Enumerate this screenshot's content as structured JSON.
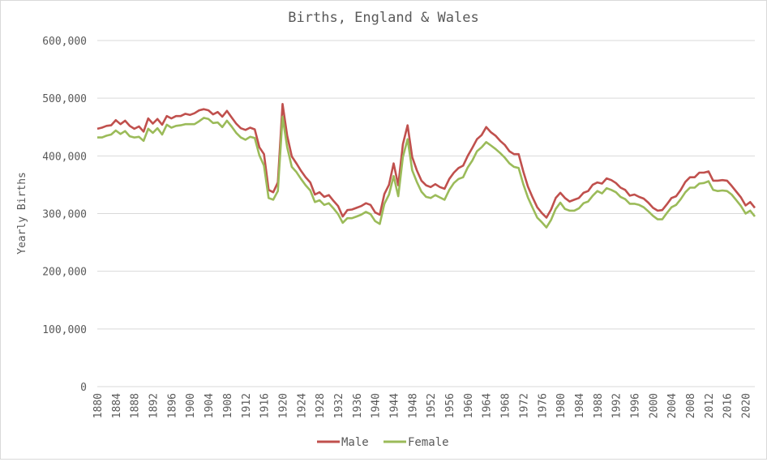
{
  "chart_data": {
    "type": "line",
    "title": "Births, England & Wales",
    "xlabel": "",
    "ylabel": "Yearly Births",
    "ylim": [
      0,
      600000
    ],
    "yticks": [
      0,
      100000,
      200000,
      300000,
      400000,
      500000,
      600000
    ],
    "ytick_labels": [
      "0",
      "100,000",
      "200,000",
      "300,000",
      "400,000",
      "500,000",
      "600,000"
    ],
    "xlim": [
      1880,
      2022
    ],
    "xticks": [
      1880,
      1884,
      1888,
      1892,
      1896,
      1900,
      1904,
      1908,
      1912,
      1916,
      1920,
      1924,
      1928,
      1932,
      1936,
      1940,
      1944,
      1948,
      1952,
      1956,
      1960,
      1964,
      1968,
      1972,
      1976,
      1980,
      1984,
      1988,
      1992,
      1996,
      2000,
      2004,
      2008,
      2012,
      2016,
      2020
    ],
    "grid": "horizontal",
    "legend_position": "bottom",
    "colors": {
      "male": "#C0504D",
      "female": "#9BBB59",
      "grid": "#d9d9d9",
      "text": "#595959"
    },
    "series": [
      {
        "name": "Male",
        "color": "#C0504D",
        "points": [
          [
            1880,
            447000
          ],
          [
            1881,
            449000
          ],
          [
            1882,
            452000
          ],
          [
            1883,
            453000
          ],
          [
            1884,
            462000
          ],
          [
            1885,
            455000
          ],
          [
            1886,
            461000
          ],
          [
            1887,
            452000
          ],
          [
            1888,
            447000
          ],
          [
            1889,
            451000
          ],
          [
            1890,
            442000
          ],
          [
            1891,
            465000
          ],
          [
            1892,
            456000
          ],
          [
            1893,
            464000
          ],
          [
            1894,
            454000
          ],
          [
            1895,
            469000
          ],
          [
            1896,
            465000
          ],
          [
            1897,
            469000
          ],
          [
            1898,
            469000
          ],
          [
            1899,
            473000
          ],
          [
            1900,
            471000
          ],
          [
            1901,
            474000
          ],
          [
            1902,
            479000
          ],
          [
            1903,
            481000
          ],
          [
            1904,
            479000
          ],
          [
            1905,
            472000
          ],
          [
            1906,
            476000
          ],
          [
            1907,
            468000
          ],
          [
            1908,
            478000
          ],
          [
            1909,
            467000
          ],
          [
            1910,
            456000
          ],
          [
            1911,
            448000
          ],
          [
            1912,
            445000
          ],
          [
            1913,
            449000
          ],
          [
            1914,
            446000
          ],
          [
            1915,
            415000
          ],
          [
            1916,
            403000
          ],
          [
            1917,
            341000
          ],
          [
            1918,
            337000
          ],
          [
            1919,
            354000
          ],
          [
            1920,
            490000
          ],
          [
            1921,
            435000
          ],
          [
            1922,
            399000
          ],
          [
            1923,
            387000
          ],
          [
            1924,
            374000
          ],
          [
            1925,
            363000
          ],
          [
            1926,
            354000
          ],
          [
            1927,
            333000
          ],
          [
            1928,
            337000
          ],
          [
            1929,
            329000
          ],
          [
            1930,
            332000
          ],
          [
            1931,
            322000
          ],
          [
            1932,
            313000
          ],
          [
            1933,
            295000
          ],
          [
            1934,
            306000
          ],
          [
            1935,
            307000
          ],
          [
            1936,
            310000
          ],
          [
            1937,
            313000
          ],
          [
            1938,
            318000
          ],
          [
            1939,
            315000
          ],
          [
            1940,
            302000
          ],
          [
            1941,
            298000
          ],
          [
            1942,
            334000
          ],
          [
            1943,
            350000
          ],
          [
            1944,
            387000
          ],
          [
            1945,
            349000
          ],
          [
            1946,
            420000
          ],
          [
            1947,
            453000
          ],
          [
            1948,
            398000
          ],
          [
            1949,
            375000
          ],
          [
            1950,
            357000
          ],
          [
            1951,
            349000
          ],
          [
            1952,
            346000
          ],
          [
            1953,
            351000
          ],
          [
            1954,
            346000
          ],
          [
            1955,
            343000
          ],
          [
            1956,
            360000
          ],
          [
            1957,
            371000
          ],
          [
            1958,
            379000
          ],
          [
            1959,
            383000
          ],
          [
            1960,
            400000
          ],
          [
            1961,
            414000
          ],
          [
            1962,
            429000
          ],
          [
            1963,
            436000
          ],
          [
            1964,
            450000
          ],
          [
            1965,
            441000
          ],
          [
            1966,
            435000
          ],
          [
            1967,
            426000
          ],
          [
            1968,
            419000
          ],
          [
            1969,
            408000
          ],
          [
            1970,
            403000
          ],
          [
            1971,
            403000
          ],
          [
            1972,
            373000
          ],
          [
            1973,
            347000
          ],
          [
            1974,
            328000
          ],
          [
            1975,
            311000
          ],
          [
            1976,
            301000
          ],
          [
            1977,
            293000
          ],
          [
            1978,
            307000
          ],
          [
            1979,
            327000
          ],
          [
            1980,
            336000
          ],
          [
            1981,
            327000
          ],
          [
            1982,
            321000
          ],
          [
            1983,
            324000
          ],
          [
            1984,
            327000
          ],
          [
            1985,
            336000
          ],
          [
            1986,
            339000
          ],
          [
            1987,
            350000
          ],
          [
            1988,
            354000
          ],
          [
            1989,
            352000
          ],
          [
            1990,
            361000
          ],
          [
            1991,
            358000
          ],
          [
            1992,
            353000
          ],
          [
            1993,
            345000
          ],
          [
            1994,
            341000
          ],
          [
            1995,
            331000
          ],
          [
            1996,
            333000
          ],
          [
            1997,
            329000
          ],
          [
            1998,
            326000
          ],
          [
            1999,
            319000
          ],
          [
            2000,
            310000
          ],
          [
            2001,
            305000
          ],
          [
            2002,
            306000
          ],
          [
            2003,
            316000
          ],
          [
            2004,
            327000
          ],
          [
            2005,
            330000
          ],
          [
            2006,
            341000
          ],
          [
            2007,
            355000
          ],
          [
            2008,
            363000
          ],
          [
            2009,
            363000
          ],
          [
            2010,
            371000
          ],
          [
            2011,
            371000
          ],
          [
            2012,
            373000
          ],
          [
            2013,
            357000
          ],
          [
            2014,
            357000
          ],
          [
            2015,
            358000
          ],
          [
            2016,
            357000
          ],
          [
            2017,
            348000
          ],
          [
            2018,
            338000
          ],
          [
            2019,
            328000
          ],
          [
            2020,
            314000
          ],
          [
            2021,
            320000
          ],
          [
            2022,
            310000
          ]
        ]
      },
      {
        "name": "Female",
        "color": "#9BBB59",
        "points": [
          [
            1880,
            432000
          ],
          [
            1881,
            432000
          ],
          [
            1882,
            435000
          ],
          [
            1883,
            437000
          ],
          [
            1884,
            444000
          ],
          [
            1885,
            438000
          ],
          [
            1886,
            443000
          ],
          [
            1887,
            434000
          ],
          [
            1888,
            432000
          ],
          [
            1889,
            433000
          ],
          [
            1890,
            426000
          ],
          [
            1891,
            447000
          ],
          [
            1892,
            440000
          ],
          [
            1893,
            448000
          ],
          [
            1894,
            437000
          ],
          [
            1895,
            454000
          ],
          [
            1896,
            449000
          ],
          [
            1897,
            452000
          ],
          [
            1898,
            453000
          ],
          [
            1899,
            455000
          ],
          [
            1900,
            455000
          ],
          [
            1901,
            455000
          ],
          [
            1902,
            460000
          ],
          [
            1903,
            466000
          ],
          [
            1904,
            464000
          ],
          [
            1905,
            457000
          ],
          [
            1906,
            458000
          ],
          [
            1907,
            450000
          ],
          [
            1908,
            461000
          ],
          [
            1909,
            451000
          ],
          [
            1910,
            440000
          ],
          [
            1911,
            432000
          ],
          [
            1912,
            428000
          ],
          [
            1913,
            433000
          ],
          [
            1914,
            431000
          ],
          [
            1915,
            401000
          ],
          [
            1916,
            383000
          ],
          [
            1917,
            327000
          ],
          [
            1918,
            324000
          ],
          [
            1919,
            339000
          ],
          [
            1920,
            468000
          ],
          [
            1921,
            415000
          ],
          [
            1922,
            381000
          ],
          [
            1923,
            372000
          ],
          [
            1924,
            360000
          ],
          [
            1925,
            349000
          ],
          [
            1926,
            340000
          ],
          [
            1927,
            320000
          ],
          [
            1928,
            323000
          ],
          [
            1929,
            315000
          ],
          [
            1930,
            318000
          ],
          [
            1931,
            309000
          ],
          [
            1932,
            299000
          ],
          [
            1933,
            284000
          ],
          [
            1934,
            292000
          ],
          [
            1935,
            292000
          ],
          [
            1936,
            295000
          ],
          [
            1937,
            298000
          ],
          [
            1938,
            303000
          ],
          [
            1939,
            299000
          ],
          [
            1940,
            287000
          ],
          [
            1941,
            282000
          ],
          [
            1942,
            317000
          ],
          [
            1943,
            333000
          ],
          [
            1944,
            365000
          ],
          [
            1945,
            330000
          ],
          [
            1946,
            398000
          ],
          [
            1947,
            429000
          ],
          [
            1948,
            375000
          ],
          [
            1949,
            355000
          ],
          [
            1950,
            338000
          ],
          [
            1951,
            329000
          ],
          [
            1952,
            327000
          ],
          [
            1953,
            332000
          ],
          [
            1954,
            328000
          ],
          [
            1955,
            324000
          ],
          [
            1956,
            341000
          ],
          [
            1957,
            353000
          ],
          [
            1958,
            360000
          ],
          [
            1959,
            363000
          ],
          [
            1960,
            380000
          ],
          [
            1961,
            392000
          ],
          [
            1962,
            408000
          ],
          [
            1963,
            415000
          ],
          [
            1964,
            424000
          ],
          [
            1965,
            418000
          ],
          [
            1966,
            412000
          ],
          [
            1967,
            405000
          ],
          [
            1968,
            397000
          ],
          [
            1969,
            387000
          ],
          [
            1970,
            381000
          ],
          [
            1971,
            379000
          ],
          [
            1972,
            351000
          ],
          [
            1973,
            328000
          ],
          [
            1974,
            310000
          ],
          [
            1975,
            293000
          ],
          [
            1976,
            285000
          ],
          [
            1977,
            276000
          ],
          [
            1978,
            289000
          ],
          [
            1979,
            308000
          ],
          [
            1980,
            319000
          ],
          [
            1981,
            308000
          ],
          [
            1982,
            305000
          ],
          [
            1983,
            305000
          ],
          [
            1984,
            309000
          ],
          [
            1985,
            318000
          ],
          [
            1986,
            321000
          ],
          [
            1987,
            331000
          ],
          [
            1988,
            339000
          ],
          [
            1989,
            335000
          ],
          [
            1990,
            344000
          ],
          [
            1991,
            341000
          ],
          [
            1992,
            337000
          ],
          [
            1993,
            329000
          ],
          [
            1994,
            325000
          ],
          [
            1995,
            317000
          ],
          [
            1996,
            317000
          ],
          [
            1997,
            315000
          ],
          [
            1998,
            311000
          ],
          [
            1999,
            304000
          ],
          [
            2000,
            296000
          ],
          [
            2001,
            290000
          ],
          [
            2002,
            290000
          ],
          [
            2003,
            301000
          ],
          [
            2004,
            311000
          ],
          [
            2005,
            315000
          ],
          [
            2006,
            325000
          ],
          [
            2007,
            337000
          ],
          [
            2008,
            345000
          ],
          [
            2009,
            345000
          ],
          [
            2010,
            352000
          ],
          [
            2011,
            353000
          ],
          [
            2012,
            356000
          ],
          [
            2013,
            341000
          ],
          [
            2014,
            339000
          ],
          [
            2015,
            340000
          ],
          [
            2016,
            339000
          ],
          [
            2017,
            333000
          ],
          [
            2018,
            323000
          ],
          [
            2019,
            313000
          ],
          [
            2020,
            300000
          ],
          [
            2021,
            305000
          ],
          [
            2022,
            295000
          ]
        ]
      }
    ]
  }
}
